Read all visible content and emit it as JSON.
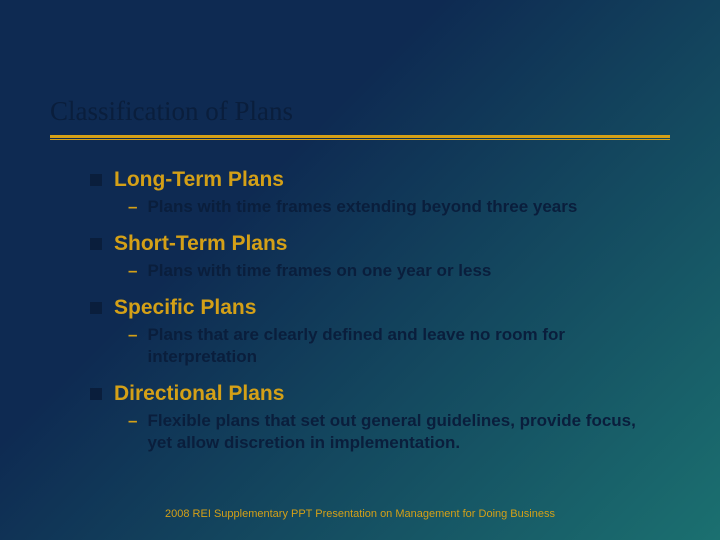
{
  "slide": {
    "title": "Classification of Plans",
    "title_color": "#0a1e3c",
    "underline_color": "#d4a017",
    "heading_color": "#d4a017",
    "bullet_color": "#0a1e3c",
    "body_text_color": "#0a1e3c",
    "footer_color": "#d4a017",
    "gradient_start": "#0e2a52",
    "gradient_end": "#1b7070",
    "title_fontsize": 27,
    "heading_fontsize": 21,
    "sub_fontsize": 17,
    "footer_fontsize": 11,
    "items": [
      {
        "heading": "Long-Term Plans",
        "sub": "Plans with time frames extending beyond three years"
      },
      {
        "heading": "Short-Term Plans",
        "sub": "Plans with time frames on one year or less"
      },
      {
        "heading": "Specific Plans",
        "sub": "Plans that are clearly defined and leave no room for interpretation"
      },
      {
        "heading": "Directional Plans",
        "sub": "Flexible plans that set out general guidelines, provide focus, yet allow discretion in implementation."
      }
    ],
    "footer": "2008 REI Supplementary PPT Presentation on Management for Doing Business"
  }
}
